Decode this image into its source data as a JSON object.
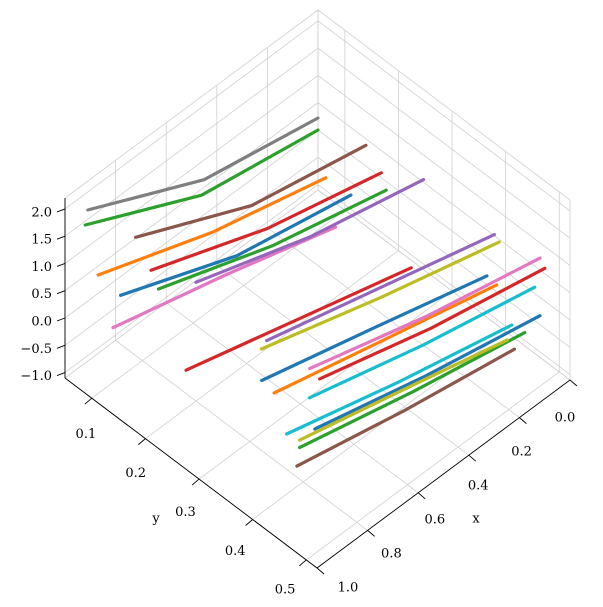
{
  "chart_data": {
    "type": "line3d",
    "xlabel": "x",
    "ylabel": "y",
    "xlim": [
      0,
      1
    ],
    "ylim": [
      0.05,
      0.52
    ],
    "zlim": [
      -1.1,
      2.2
    ],
    "xticks": [
      {
        "value": 0,
        "label": "0.0"
      },
      0.2,
      0.4,
      0.6,
      0.8,
      {
        "value": 1,
        "label": "1.0"
      }
    ],
    "yticks": [
      0.1,
      0.2,
      0.3,
      0.4,
      0.5
    ],
    "zticks": [
      {
        "value": -1,
        "label": "−1.0"
      },
      {
        "value": -0.5,
        "label": "−0.5"
      },
      {
        "value": 0,
        "label": "0.0"
      },
      0.5,
      {
        "value": 1,
        "label": "1.0"
      },
      1.5,
      {
        "value": 2,
        "label": "2.0"
      }
    ],
    "grid": true,
    "series": [
      {
        "color": "#7f7f7f",
        "x": [
          0.91,
          0.45,
          0
        ],
        "y": [
          0.05,
          0.05,
          0.05
        ],
        "z": [
          1.67,
          0.64,
          0.22
        ]
      },
      {
        "color": "#2ca02c",
        "x": [
          0.92,
          0.46,
          0
        ],
        "y": [
          0.05,
          0.05,
          0.05
        ],
        "z": [
          1.43,
          0.39,
          0
        ]
      },
      {
        "color": "#8c564b",
        "x": [
          0.92,
          0.46,
          0.01
        ],
        "y": [
          0.144,
          0.144,
          0.144
        ],
        "z": [
          1.9,
          0.9,
          0.45
        ]
      },
      {
        "color": "#ff7f0e",
        "x": [
          0.92,
          0.47,
          0.02
        ],
        "y": [
          0.074,
          0.074,
          0.074
        ],
        "z": [
          0.69,
          -0.08,
          -0.63
        ]
      },
      {
        "color": "#d62728",
        "x": [
          0.91,
          0.45,
          0
        ],
        "y": [
          0.168,
          0.168,
          0.168
        ],
        "z": [
          1.44,
          0.62,
          0.09
        ]
      },
      {
        "color": "#1f77b4",
        "x": [
          0.92,
          0.46,
          0.01
        ],
        "y": [
          0.116,
          0.116,
          0.116
        ],
        "z": [
          0.63,
          -0.23,
          -0.67
        ]
      },
      {
        "color": "#2ca02c",
        "x": [
          0.91,
          0.46,
          0.01
        ],
        "y": [
          0.182,
          0.182,
          0.182
        ],
        "z": [
          1.2,
          0.44,
          -0.09
        ]
      },
      {
        "color": "#e377c2",
        "x": [
          0.91,
          0.47,
          0.03
        ],
        "y": [
          0.097,
          0.097,
          0.097
        ],
        "z": [
          -0.14,
          -0.7,
          -1.33
        ]
      },
      {
        "color": "#9467bd",
        "x": [
          0.9,
          0.45,
          0
        ],
        "y": [
          0.247,
          0.247,
          0.247
        ],
        "z": [
          1.77,
          1.05,
          0.55
        ]
      },
      {
        "color": "#d62728",
        "x": [
          0.92,
          0.47,
          0.03
        ],
        "y": [
          0.238,
          0.238,
          0.238
        ],
        "z": [
          0.16,
          -0.44,
          -1.03
        ]
      },
      {
        "color": "#9467bd",
        "x": [
          0.9,
          0.45,
          0
        ],
        "y": [
          0.379,
          0.379,
          0.379
        ],
        "z": [
          1.68,
          1.1,
          0.52
        ]
      },
      {
        "color": "#bcbd22",
        "x": [
          0.94,
          0.47,
          0
        ],
        "y": [
          0.388,
          0.388,
          0.388
        ],
        "z": [
          1.73,
          1.05,
          0.45
        ]
      },
      {
        "color": "#ff7f0e",
        "x": [
          0.89,
          0.45,
          0.01
        ],
        "y": [
          0.388,
          0.388,
          0.388
        ],
        "z": [
          0.75,
          0.22,
          -0.3
        ]
      },
      {
        "color": "#1f77b4",
        "x": [
          0.89,
          0.45,
          0
        ],
        "y": [
          0.365,
          0.365,
          0.365
        ],
        "z": [
          0.81,
          0.25,
          -0.34
        ]
      },
      {
        "color": "#e377c2",
        "x": [
          0.91,
          0.45,
          0
        ],
        "y": [
          0.464,
          0.464,
          0.464
        ],
        "z": [
          1.83,
          1.2,
          0.72
        ]
      },
      {
        "color": "#d62728",
        "x": [
          0.89,
          0.45,
          0
        ],
        "y": [
          0.473,
          0.473,
          0.473
        ],
        "z": [
          1.64,
          1.05,
          0.6
        ]
      },
      {
        "color": "#17becf",
        "x": [
          0.93,
          0.48,
          0.04
        ],
        "y": [
          0.473,
          0.473,
          0.473
        ],
        "z": [
          1.43,
          0.85,
          0.39
        ]
      },
      {
        "color": "#17becf",
        "x": [
          0.94,
          0.5,
          0.05
        ],
        "y": [
          0.435,
          0.435,
          0.435
        ],
        "z": [
          0.52,
          -0.05,
          -0.55
        ]
      },
      {
        "color": "#1f77b4",
        "x": [
          0.96,
          0.52,
          0.07
        ],
        "y": [
          0.497,
          0.497,
          0.497
        ],
        "z": [
          1.14,
          0.6,
          0.15
        ]
      },
      {
        "color": "#2ca02c",
        "x": [
          0.95,
          0.5,
          0.06
        ],
        "y": [
          0.464,
          0.464,
          0.464
        ],
        "z": [
          0.52,
          0,
          -0.44
        ]
      },
      {
        "color": "#8c564b",
        "x": [
          0.98,
          0.55,
          0.12
        ],
        "y": [
          0.473,
          0.473,
          0.473
        ],
        "z": [
          0.35,
          -0.1,
          -0.47
        ]
      },
      {
        "color": "#bcbd22",
        "x": [
          0.92,
          0.5,
          0.1
        ],
        "y": [
          0.45,
          0.45,
          0.45
        ],
        "z": [
          0.45,
          -0.05,
          -0.54
        ]
      }
    ]
  }
}
